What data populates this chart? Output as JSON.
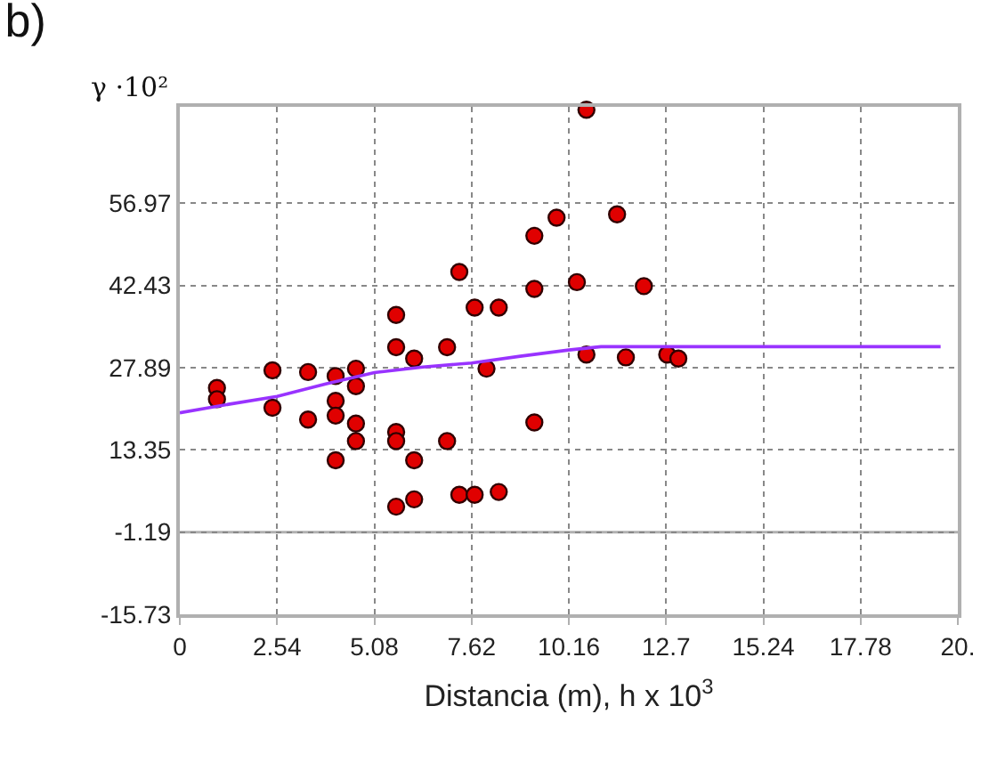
{
  "chart_data": {
    "type": "scatter",
    "title": "b)",
    "xlabel": "Distancia (m), h x 10$^{3}$",
    "ylabel": "γ ·10²",
    "xlim": [
      0,
      20.32
    ],
    "xticks": [
      0,
      2.54,
      5.08,
      7.62,
      10.16,
      12.7,
      15.24,
      17.78,
      {
        "value": 20.32,
        "label": "20."
      }
    ],
    "ylim": [
      -15.73,
      74
    ],
    "yticks": [
      -15.73,
      -1.19,
      13.35,
      27.89,
      42.43,
      56.97
    ],
    "grid": true,
    "marker": "circle",
    "ref_lines": [
      {
        "axis": "y",
        "value": -1.19,
        "color": "#b0b0b0",
        "line_style": "solid"
      }
    ],
    "series": [
      {
        "color": "#e00000",
        "x": [
          0.97,
          0.97,
          2.42,
          2.42,
          3.35,
          3.35,
          4.07,
          4.07,
          4.07,
          4.07,
          4.6,
          4.6,
          4.6,
          4.6,
          5.65,
          5.65,
          5.65,
          5.65,
          5.65,
          6.12,
          6.12,
          6.12,
          6.98,
          6.98,
          7.3,
          7.3,
          7.7,
          7.7,
          8.01,
          8.33,
          8.33,
          9.26,
          9.26,
          9.26,
          9.84,
          10.62,
          10.37,
          10.62,
          11.42,
          11.65,
          12.12,
          12.73,
          13.02
        ],
        "values": [
          24.3,
          22.3,
          27.4,
          20.8,
          27.1,
          18.7,
          26.4,
          22.0,
          19.4,
          11.5,
          27.7,
          24.6,
          18.0,
          14.9,
          37.2,
          31.5,
          16.5,
          14.9,
          3.3,
          29.5,
          11.5,
          4.6,
          31.5,
          14.9,
          44.8,
          5.4,
          38.5,
          5.4,
          27.7,
          38.5,
          5.9,
          51.2,
          41.8,
          18.2,
          54.4,
          73.5,
          43.0,
          30.2,
          55.0,
          29.7,
          42.3,
          30.2,
          29.5
        ]
      },
      {
        "type": "line",
        "color": "#9933ff",
        "marker": "none",
        "line_style": "solid",
        "x": [
          0,
          1.27,
          2.54,
          3.81,
          5.08,
          6.35,
          7.62,
          8.89,
          10.16,
          11.0,
          19.87
        ],
        "values": [
          19.9,
          21.4,
          22.8,
          25.0,
          27.0,
          28.0,
          28.7,
          29.9,
          31.0,
          31.6,
          31.6
        ]
      }
    ]
  }
}
